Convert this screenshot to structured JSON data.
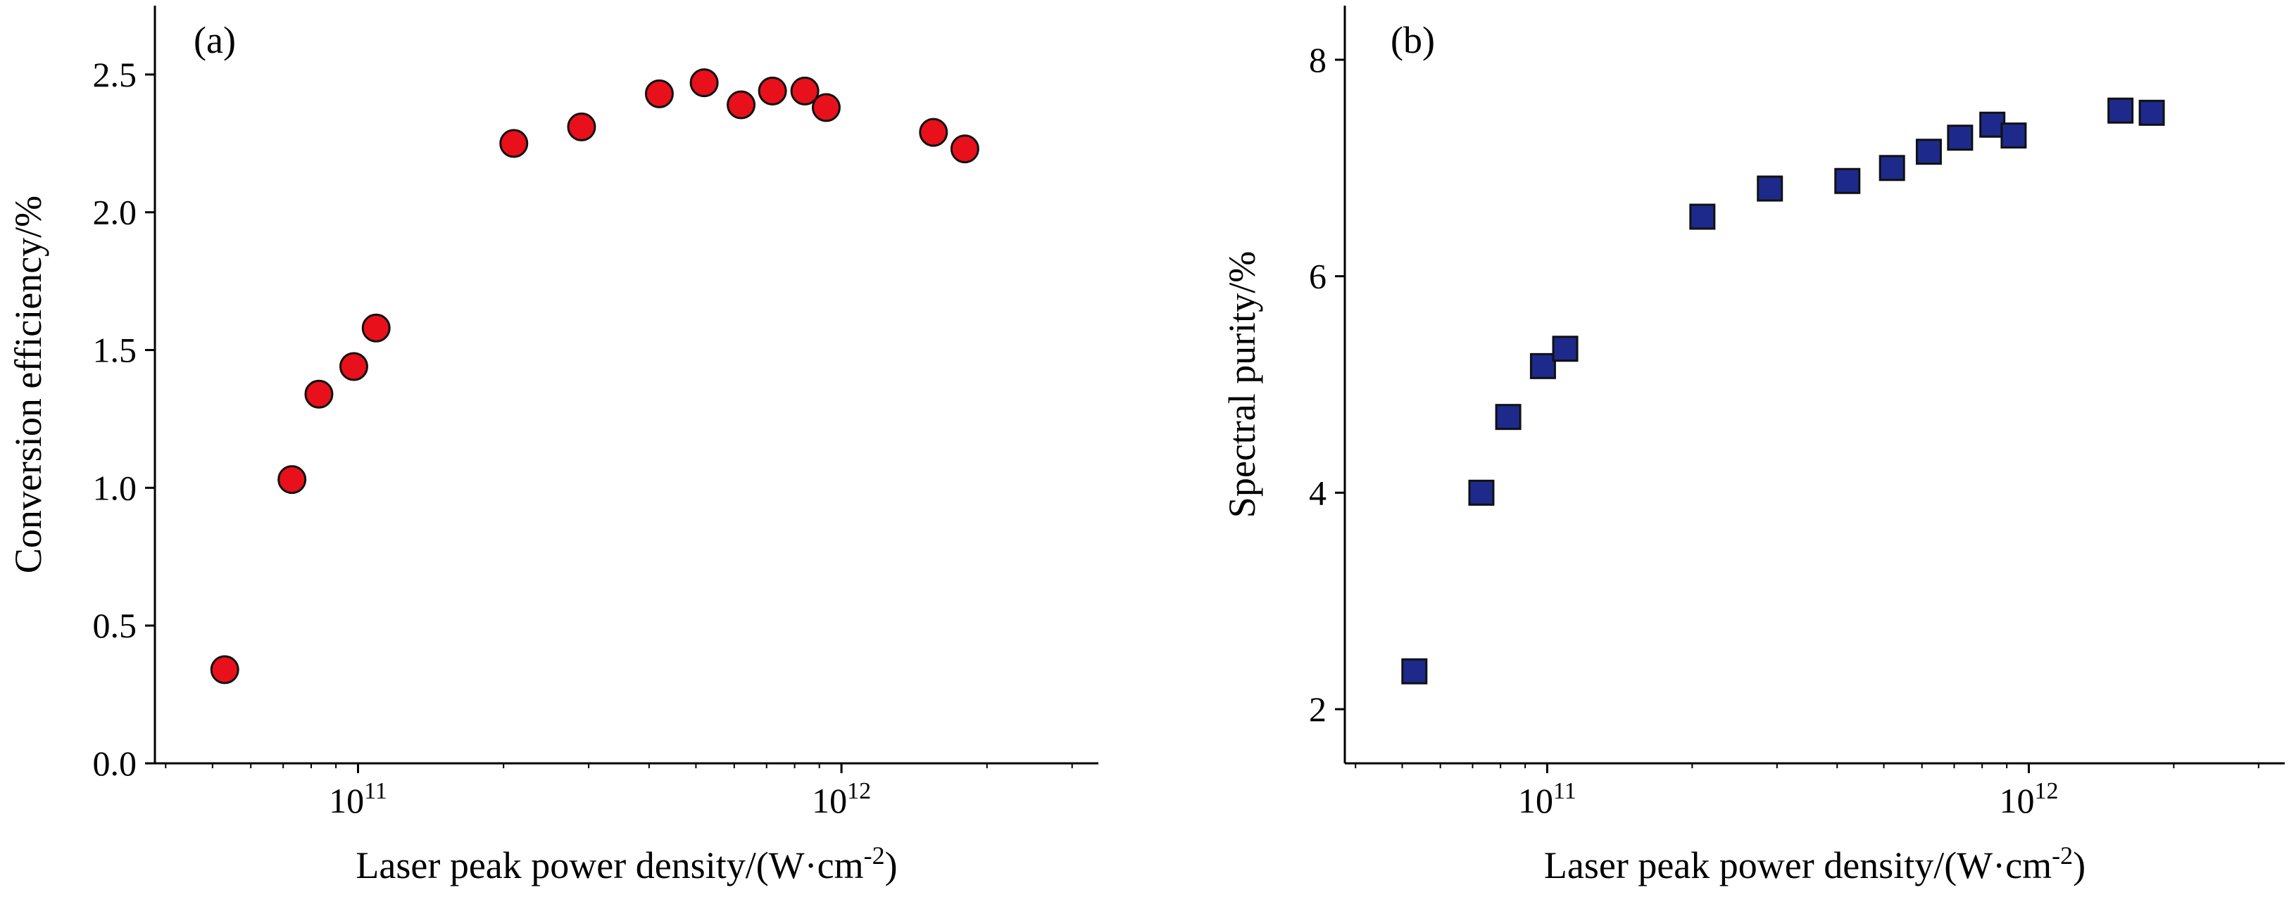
{
  "chart_data": [
    {
      "type": "scatter",
      "panel_label": "(a)",
      "xlabel": "Laser peak power density/(W·cm",
      "xlabel_sup": "-2",
      "xlabel_close": ")",
      "ylabel": "Conversion efficiency/%",
      "xscale": "log",
      "xlim": [
        38000000000.0,
        3400000000000.0
      ],
      "ylim": [
        0,
        2.75
      ],
      "x_ticks": [
        {
          "value": 100000000000.0,
          "base": "10",
          "exp": "11"
        },
        {
          "value": 1000000000000.0,
          "base": "10",
          "exp": "12"
        }
      ],
      "y_ticks": [
        {
          "value": 0.0,
          "label": "0.0"
        },
        {
          "value": 0.5,
          "label": "0.5"
        },
        {
          "value": 1.0,
          "label": "1.0"
        },
        {
          "value": 1.5,
          "label": "1.5"
        },
        {
          "value": 2.0,
          "label": "2.0"
        },
        {
          "value": 2.5,
          "label": "2.5"
        }
      ],
      "grid": false,
      "marker": "circle",
      "marker_fill": "#e8101a",
      "marker_edge": "#111111",
      "x": [
        53000000000.0,
        73000000000.0,
        83000000000.0,
        98000000000.0,
        109000000000.0,
        210000000000.0,
        290000000000.0,
        420000000000.0,
        520000000000.0,
        620000000000.0,
        720000000000.0,
        840000000000.0,
        930000000000.0,
        1550000000000.0,
        1800000000000.0
      ],
      "y": [
        0.34,
        1.03,
        1.34,
        1.44,
        1.58,
        2.25,
        2.31,
        2.43,
        2.47,
        2.39,
        2.44,
        2.44,
        2.38,
        2.29,
        2.23
      ]
    },
    {
      "type": "scatter",
      "panel_label": "(b)",
      "xlabel": "Laser peak power density/(W·cm",
      "xlabel_sup": "-2",
      "xlabel_close": ")",
      "ylabel": "Spectral purity/%",
      "xscale": "log",
      "xlim": [
        38000000000.0,
        3400000000000.0
      ],
      "ylim": [
        1.5,
        8.5
      ],
      "x_ticks": [
        {
          "value": 100000000000.0,
          "base": "10",
          "exp": "11"
        },
        {
          "value": 1000000000000.0,
          "base": "10",
          "exp": "12"
        }
      ],
      "y_ticks": [
        {
          "value": 2,
          "label": "2"
        },
        {
          "value": 4,
          "label": "4"
        },
        {
          "value": 6,
          "label": "6"
        },
        {
          "value": 8,
          "label": "8"
        }
      ],
      "grid": false,
      "marker": "square",
      "marker_fill": "#1d2a8c",
      "marker_edge": "#111111",
      "x": [
        53000000000.0,
        73000000000.0,
        83000000000.0,
        98000000000.0,
        109000000000.0,
        210000000000.0,
        290000000000.0,
        420000000000.0,
        520000000000.0,
        620000000000.0,
        720000000000.0,
        840000000000.0,
        930000000000.0,
        1550000000000.0,
        1800000000000.0
      ],
      "y": [
        2.35,
        4.0,
        4.7,
        5.17,
        5.33,
        6.55,
        6.81,
        6.88,
        7.0,
        7.15,
        7.28,
        7.4,
        7.3,
        7.53,
        7.51
      ]
    }
  ]
}
